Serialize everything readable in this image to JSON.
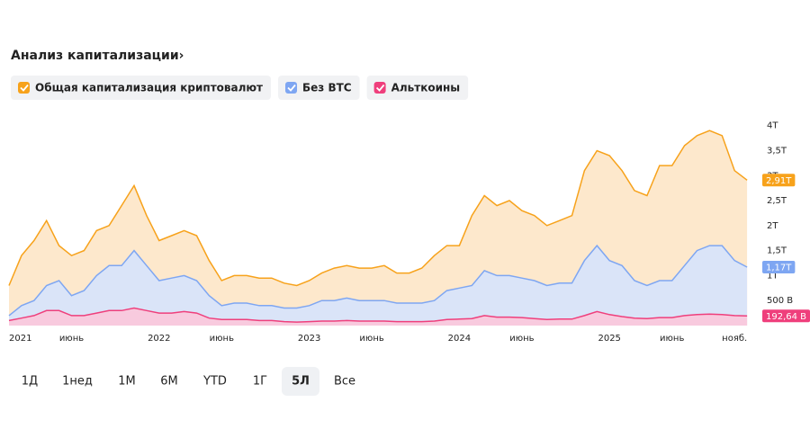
{
  "chart_data": {
    "type": "area",
    "title": "Анализ капитализации›",
    "categories": [
      "2021",
      null,
      null,
      null,
      null,
      "июнь",
      null,
      null,
      null,
      null,
      null,
      null,
      "2022",
      null,
      null,
      null,
      null,
      "июнь",
      null,
      null,
      null,
      null,
      null,
      null,
      "2023",
      null,
      null,
      null,
      null,
      "июнь",
      null,
      null,
      null,
      null,
      null,
      null,
      "2024",
      null,
      null,
      null,
      null,
      "июнь",
      null,
      null,
      null,
      null,
      null,
      null,
      "2025",
      null,
      null,
      null,
      null,
      "июнь",
      null,
      null,
      null,
      null,
      "нояб.",
      null
    ],
    "series": [
      {
        "name": "Общая капитализация криптовалют",
        "color": "#f7a21b",
        "fill": "#fde6c6",
        "values": [
          0.8,
          1.4,
          1.7,
          2.1,
          1.6,
          1.4,
          1.5,
          1.9,
          2.0,
          2.4,
          2.8,
          2.2,
          1.7,
          1.8,
          1.9,
          1.8,
          1.3,
          0.9,
          1.0,
          1.0,
          0.95,
          0.95,
          0.85,
          0.8,
          0.9,
          1.05,
          1.15,
          1.2,
          1.15,
          1.15,
          1.2,
          1.05,
          1.05,
          1.15,
          1.4,
          1.6,
          1.6,
          2.2,
          2.6,
          2.4,
          2.5,
          2.3,
          2.2,
          2.0,
          2.1,
          2.2,
          3.1,
          3.5,
          3.4,
          3.1,
          2.7,
          2.6,
          3.2,
          3.2,
          3.6,
          3.8,
          3.9,
          3.8,
          3.1,
          2.91
        ],
        "value_labels": [
          null,
          null,
          null,
          null,
          null,
          null,
          null,
          null,
          null,
          null,
          null,
          null,
          null,
          null,
          null,
          null,
          null,
          null,
          null,
          null,
          null,
          null,
          null,
          null,
          null,
          null,
          null,
          null,
          null,
          null,
          null,
          null,
          null,
          null,
          null,
          null,
          null,
          null,
          null,
          null,
          null,
          null,
          null,
          null,
          null,
          null,
          null,
          null,
          null,
          null,
          null,
          null,
          null,
          null,
          null,
          null,
          null,
          null,
          null,
          "2,91T"
        ]
      },
      {
        "name": "Без BTC",
        "color": "#7ea6f2",
        "fill": "#d6e3fd",
        "values": [
          0.2,
          0.4,
          0.5,
          0.8,
          0.9,
          0.6,
          0.7,
          1.0,
          1.2,
          1.2,
          1.5,
          1.2,
          0.9,
          0.95,
          1.0,
          0.9,
          0.6,
          0.4,
          0.45,
          0.45,
          0.4,
          0.4,
          0.35,
          0.35,
          0.4,
          0.5,
          0.5,
          0.55,
          0.5,
          0.5,
          0.5,
          0.45,
          0.45,
          0.45,
          0.5,
          0.7,
          0.75,
          0.8,
          1.1,
          1.0,
          1.0,
          0.95,
          0.9,
          0.8,
          0.85,
          0.85,
          1.3,
          1.6,
          1.3,
          1.2,
          0.9,
          0.8,
          0.9,
          0.9,
          1.2,
          1.5,
          1.6,
          1.6,
          1.3,
          1.17
        ],
        "value_labels": [
          null,
          null,
          null,
          null,
          null,
          null,
          null,
          null,
          null,
          null,
          null,
          null,
          null,
          null,
          null,
          null,
          null,
          null,
          null,
          null,
          null,
          null,
          null,
          null,
          null,
          null,
          null,
          null,
          null,
          null,
          null,
          null,
          null,
          null,
          null,
          null,
          null,
          null,
          null,
          null,
          null,
          null,
          null,
          null,
          null,
          null,
          null,
          null,
          null,
          null,
          null,
          null,
          null,
          null,
          null,
          null,
          null,
          null,
          null,
          "1,17T"
        ]
      },
      {
        "name": "Альткоины",
        "color": "#ef3f7c",
        "fill": "#fbc6da",
        "values": [
          0.1,
          0.15,
          0.2,
          0.3,
          0.3,
          0.2,
          0.2,
          0.25,
          0.3,
          0.3,
          0.35,
          0.3,
          0.25,
          0.25,
          0.28,
          0.25,
          0.15,
          0.12,
          0.12,
          0.12,
          0.1,
          0.1,
          0.08,
          0.07,
          0.08,
          0.09,
          0.09,
          0.1,
          0.09,
          0.09,
          0.09,
          0.08,
          0.08,
          0.08,
          0.09,
          0.12,
          0.13,
          0.14,
          0.2,
          0.17,
          0.17,
          0.16,
          0.14,
          0.12,
          0.13,
          0.13,
          0.2,
          0.28,
          0.22,
          0.18,
          0.15,
          0.14,
          0.16,
          0.16,
          0.2,
          0.22,
          0.23,
          0.22,
          0.2,
          0.19264
        ],
        "value_labels": [
          null,
          null,
          null,
          null,
          null,
          null,
          null,
          null,
          null,
          null,
          null,
          null,
          null,
          null,
          null,
          null,
          null,
          null,
          null,
          null,
          null,
          null,
          null,
          null,
          null,
          null,
          null,
          null,
          null,
          null,
          null,
          null,
          null,
          null,
          null,
          null,
          null,
          null,
          null,
          null,
          null,
          null,
          null,
          null,
          null,
          null,
          null,
          null,
          null,
          null,
          null,
          null,
          null,
          null,
          null,
          null,
          null,
          null,
          null,
          "192,64 B"
        ]
      }
    ],
    "ylim": [
      0,
      4.3
    ],
    "yticks": [
      {
        "value": 0.5,
        "label": "500 B"
      },
      {
        "value": 1,
        "label": "1T"
      },
      {
        "value": 1.5,
        "label": "1,5T"
      },
      {
        "value": 2,
        "label": "2T"
      },
      {
        "value": 2.5,
        "label": "2,5T"
      },
      {
        "value": 3,
        "label": "3T"
      },
      {
        "value": 3.5,
        "label": "3,5T"
      },
      {
        "value": 4,
        "label": "4T"
      }
    ],
    "grid": false
  },
  "ranges": [
    {
      "label": "1Д",
      "selected": false
    },
    {
      "label": "1нед",
      "selected": false
    },
    {
      "label": "1M",
      "selected": false
    },
    {
      "label": "6M",
      "selected": false
    },
    {
      "label": "YTD",
      "selected": false
    },
    {
      "label": "1Г",
      "selected": false
    },
    {
      "label": "5Л",
      "selected": true
    },
    {
      "label": "Все",
      "selected": false
    }
  ]
}
